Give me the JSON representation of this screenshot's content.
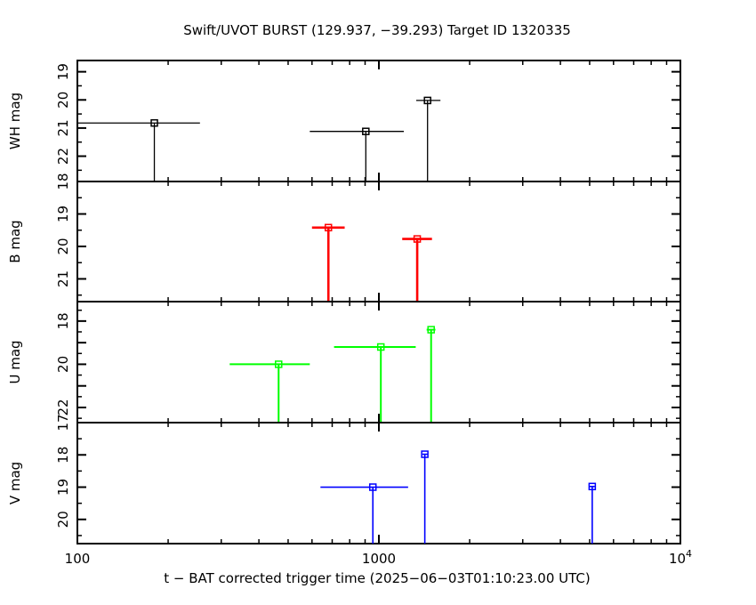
{
  "chart_data": {
    "type": "scatter",
    "title": "Swift/UVOT BURST (129.937, −39.293) Target ID 1320335",
    "xlabel": "t − BAT corrected trigger time (2025−06−03T01:10:23.00 UTC)",
    "x_scale": "log",
    "xlim": [
      100,
      10000
    ],
    "x_ticks": [
      {
        "value": 100,
        "label": "100"
      },
      {
        "value": 1000,
        "label": "1000"
      },
      {
        "value": 10000,
        "label": "10",
        "exp": "4"
      }
    ],
    "panels": [
      {
        "id": "wh",
        "ylabel": "WH mag",
        "ylim": [
          18.6,
          22.9
        ],
        "y_inverted": true,
        "yticks": [
          19,
          20,
          21,
          22
        ],
        "color": "#000000",
        "line_width": 1.3,
        "points": [
          {
            "x": 180,
            "xmin": 100,
            "xmax": 255,
            "y": 20.82
          },
          {
            "x": 905,
            "xmin": 590,
            "xmax": 1210,
            "y": 21.12
          },
          {
            "x": 1450,
            "xmin": 1330,
            "xmax": 1600,
            "y": 20.02
          }
        ]
      },
      {
        "id": "b",
        "ylabel": "B mag",
        "ylim": [
          18.0,
          21.7
        ],
        "y_inverted": true,
        "yticks": [
          18,
          19,
          20,
          21
        ],
        "color": "#ff0000",
        "line_width": 2.6,
        "points": [
          {
            "x": 680,
            "xmin": 600,
            "xmax": 770,
            "y": 19.42
          },
          {
            "x": 1340,
            "xmin": 1195,
            "xmax": 1500,
            "y": 19.77
          }
        ]
      },
      {
        "id": "u",
        "ylabel": "U mag",
        "ylim": [
          17.1,
          22.7
        ],
        "y_inverted": true,
        "yticks": [
          18,
          20,
          22
        ],
        "color": "#00ff00",
        "line_width": 2,
        "points": [
          {
            "x": 465,
            "xmin": 320,
            "xmax": 590,
            "y": 20.0
          },
          {
            "x": 1015,
            "xmin": 710,
            "xmax": 1325,
            "y": 19.2
          },
          {
            "x": 1490,
            "xmin": 1440,
            "xmax": 1540,
            "y": 18.4
          }
        ]
      },
      {
        "id": "v",
        "ylabel": "V mag",
        "ylim": [
          17.0,
          20.75
        ],
        "y_inverted": true,
        "yticks": [
          17,
          18,
          19,
          20
        ],
        "color": "#0000ff",
        "line_width": 1.6,
        "points": [
          {
            "x": 955,
            "xmin": 640,
            "xmax": 1250,
            "y": 19.0
          },
          {
            "x": 1420,
            "xmin": 1395,
            "xmax": 1450,
            "y": 17.98
          },
          {
            "x": 5100,
            "xmin": 5000,
            "xmax": 5200,
            "y": 18.98
          }
        ]
      }
    ]
  }
}
